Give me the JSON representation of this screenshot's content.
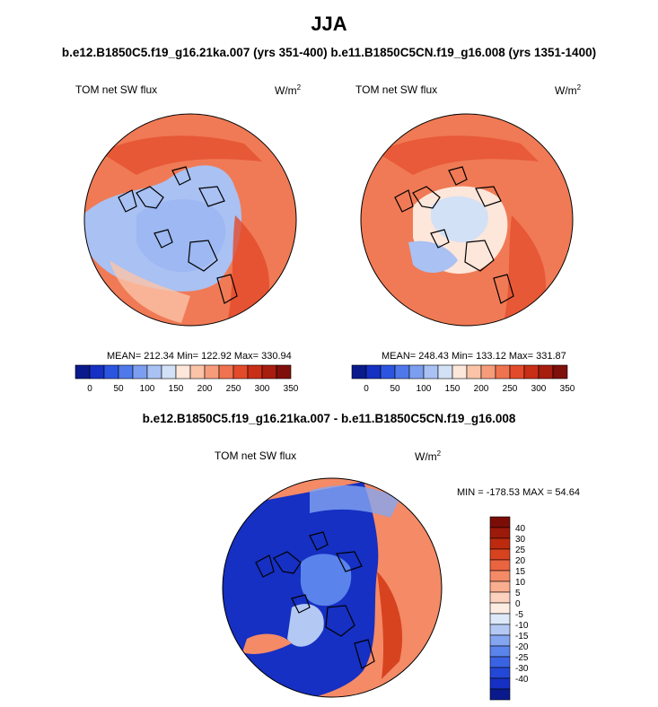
{
  "title": "JJA",
  "subtitle": "b.e12.B1850C5.f19_g16.21ka.007 (yrs 351-400) b.e11.B1850C5CN.f19_g16.008 (yrs 1351-1400)",
  "difference_title": "b.e12.B1850C5.f19_g16.21ka.007 - b.e11.B1850C5CN.f19_g16.008",
  "panels": [
    {
      "variable": "TOM net SW flux",
      "units": "W/m",
      "units_exp": "2",
      "stats": "MEAN= 212.34  Min= 122.92  Max= 330.94"
    },
    {
      "variable": "TOM net SW flux",
      "units": "W/m",
      "units_exp": "2",
      "stats": "MEAN= 248.43  Min= 133.12  Max= 331.87"
    }
  ],
  "diff_panel": {
    "variable": "TOM net SW flux",
    "units": "W/m",
    "units_exp": "2",
    "stats": "MIN = -178.53 MAX =  54.64"
  },
  "colorbar_abs": {
    "colors": [
      "#0a1a8c",
      "#1530c2",
      "#2b55e0",
      "#4f78ea",
      "#7c9ef0",
      "#a9c1f3",
      "#d3e1f6",
      "#fde6da",
      "#fbc3a8",
      "#f79c7b",
      "#f0734f",
      "#e34a2b",
      "#c92e16",
      "#a71d0e",
      "#7f0f0a"
    ],
    "labels": [
      "0",
      "50",
      "100",
      "150",
      "200",
      "250",
      "300",
      "350"
    ]
  },
  "colorbar_diff": {
    "colors": [
      "#0a1a8c",
      "#1530c2",
      "#2347d6",
      "#3a63e4",
      "#5a83ec",
      "#85a5f1",
      "#b3c9f4",
      "#dde8f8",
      "#fdece2",
      "#fcd1bd",
      "#f9ae90",
      "#f48a66",
      "#ea6440",
      "#d8431f",
      "#bd2a0f",
      "#9c1a0a",
      "#7a0d07"
    ],
    "labels": [
      "40",
      "30",
      "25",
      "20",
      "15",
      "10",
      "5",
      "0",
      "-5",
      "-10",
      "-15",
      "-20",
      "-25",
      "-30",
      "-40"
    ]
  }
}
